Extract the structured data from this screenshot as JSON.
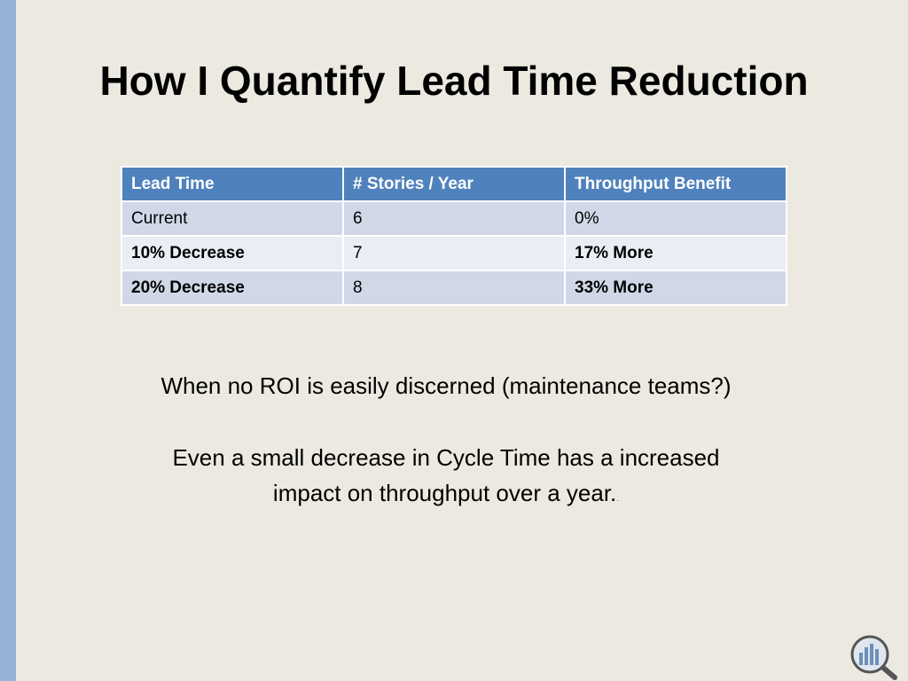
{
  "title": "How I Quantify Lead Time Reduction",
  "table": {
    "header": [
      "Lead Time",
      "# Stories / Year",
      "Throughput Benefit"
    ],
    "rows": [
      [
        "Current",
        "6",
        "0%"
      ],
      [
        "10% Decrease",
        "7",
        "17% More"
      ],
      [
        "20% Decrease",
        "8",
        "33% More"
      ]
    ]
  },
  "text": {
    "lines": [
      "When no ROI is easily discerned (maintenance teams?)",
      "Even a small decrease in Cycle Time has a increased",
      "impact on throughput over a year."
    ],
    "trailing": "."
  }
}
